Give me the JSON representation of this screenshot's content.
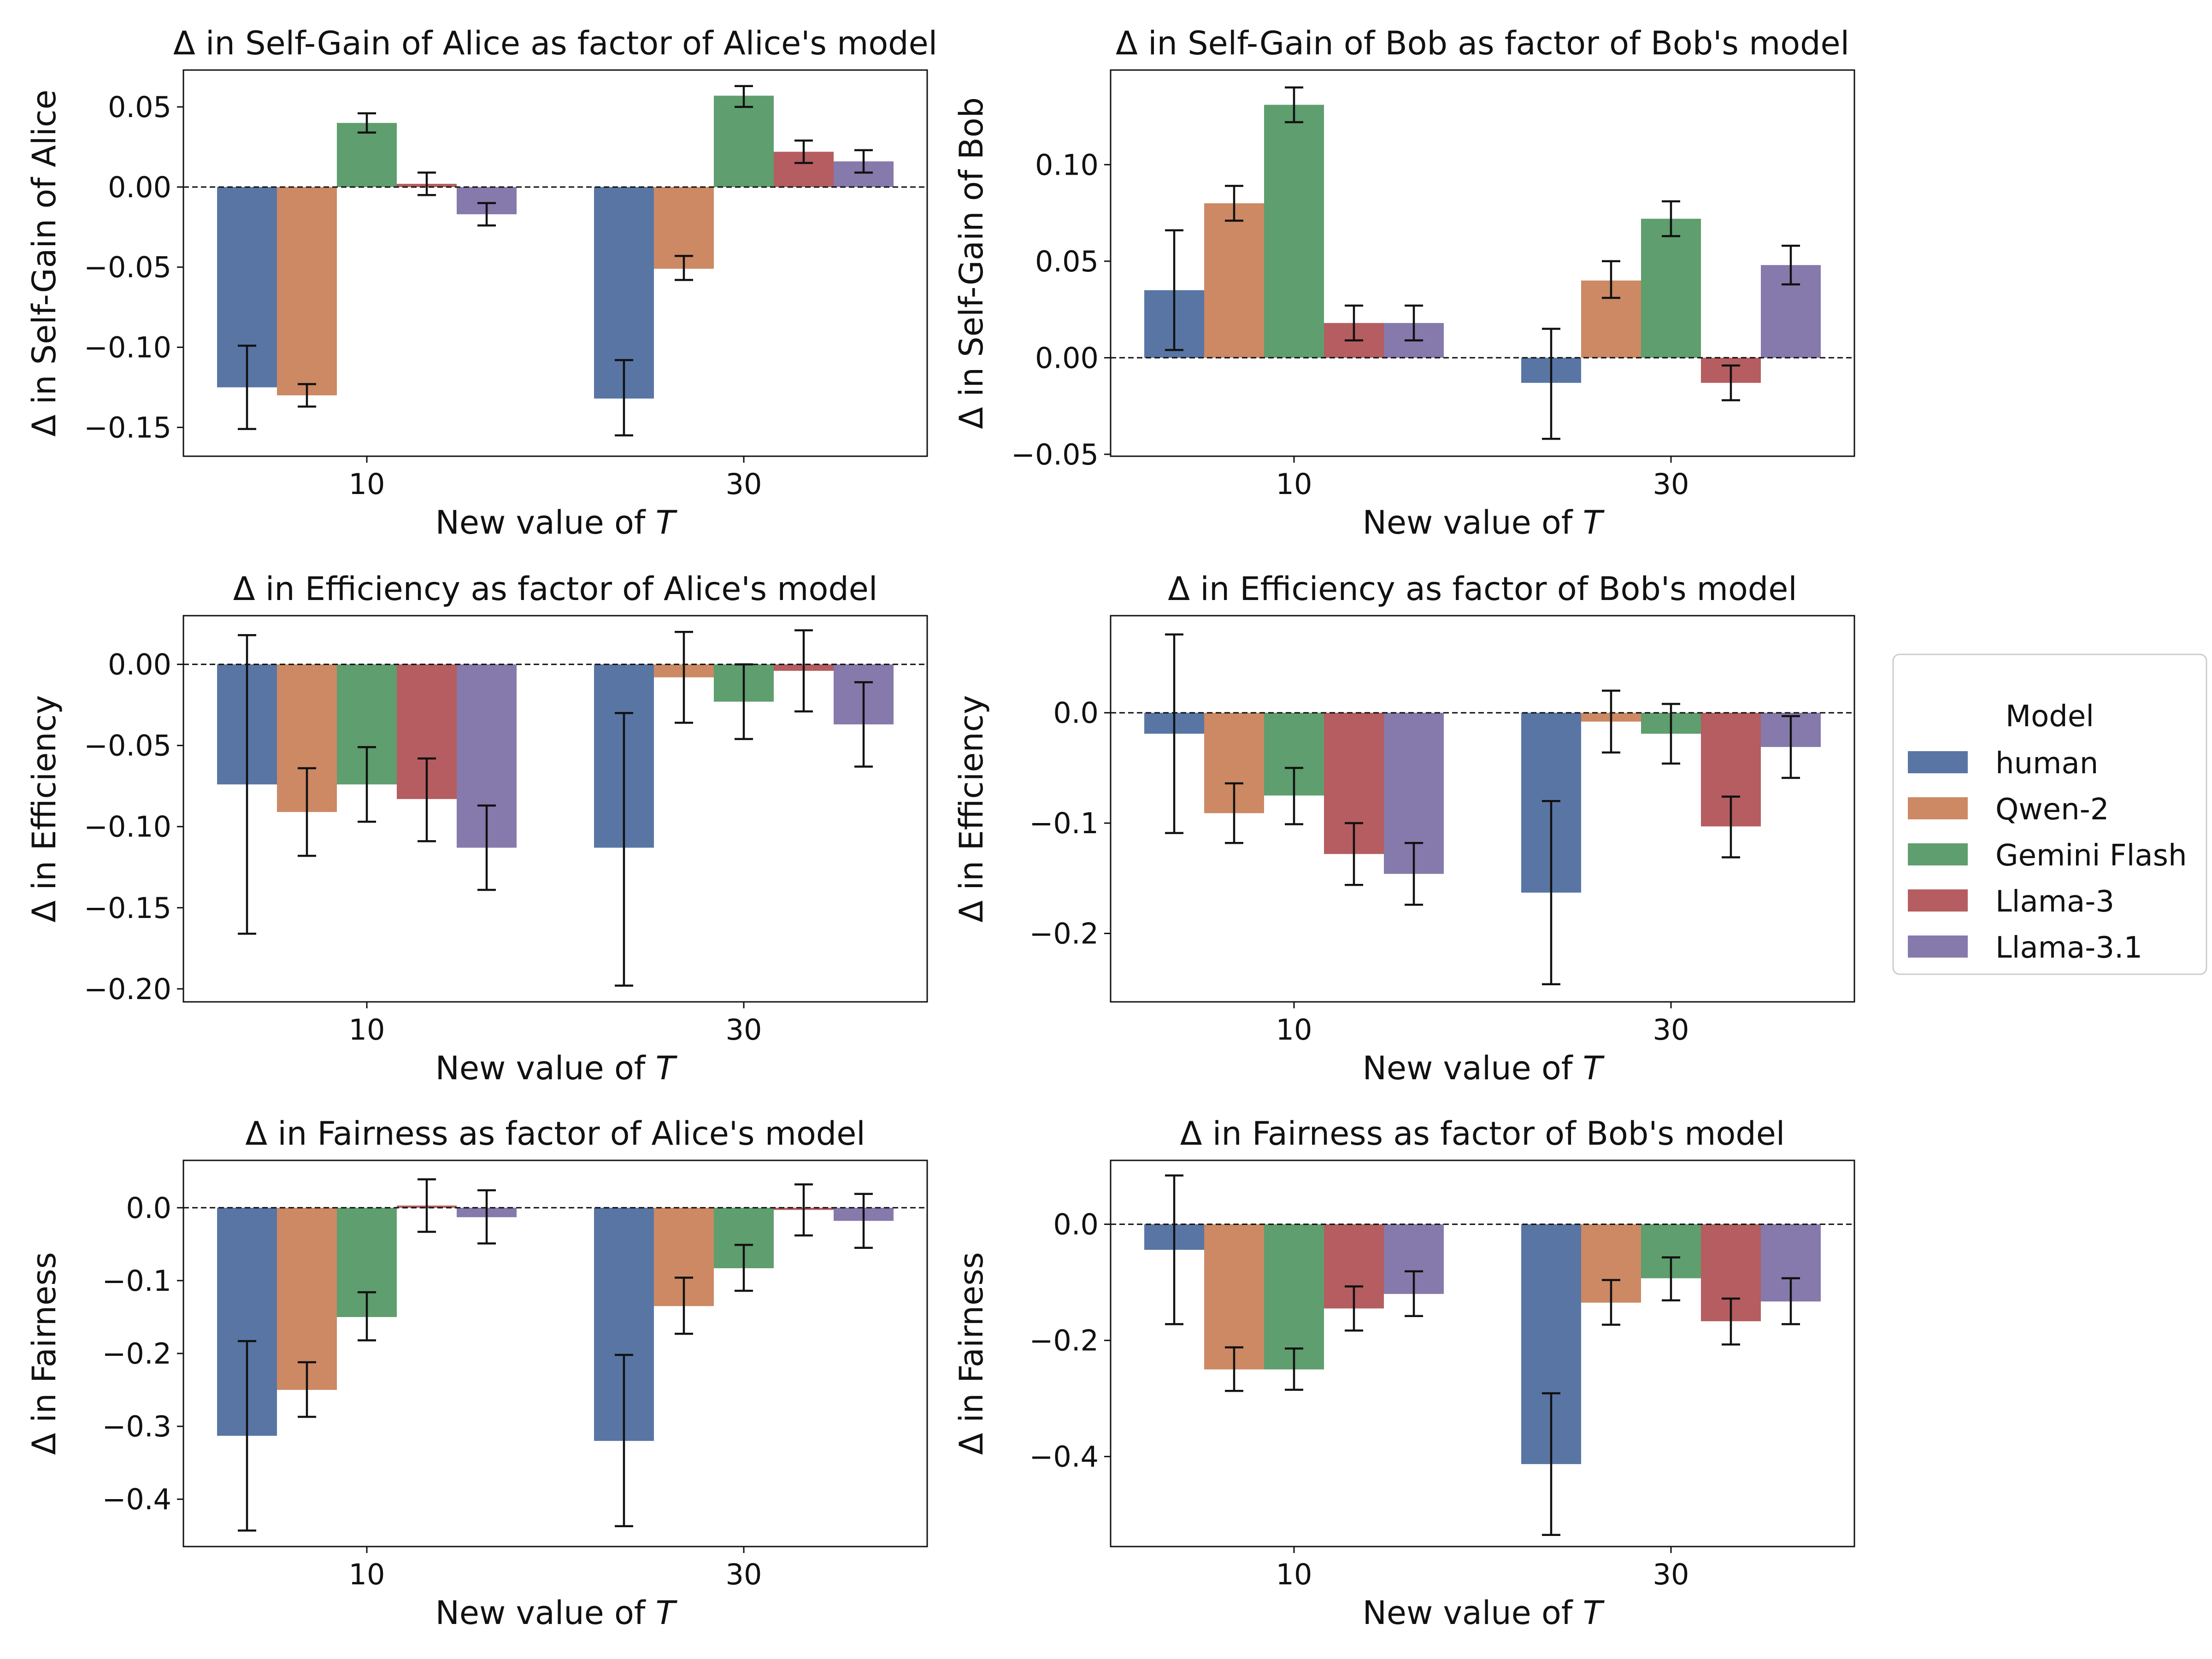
{
  "legend": {
    "title": "Model",
    "placement": "right",
    "items": [
      {
        "label": "human",
        "color": "#5875a4"
      },
      {
        "label": "Qwen-2",
        "color": "#cc8963"
      },
      {
        "label": "Gemini Flash",
        "color": "#5f9e6e"
      },
      {
        "label": "Llama-3",
        "color": "#b55d60"
      },
      {
        "label": "Llama-3.1",
        "color": "#857aab"
      }
    ]
  },
  "chart_data": [
    {
      "type": "bar",
      "title": "Δ in Self-Gain of Alice as factor of Alice's model",
      "xlabel_prefix": "New value of ",
      "xlabel_var": "T",
      "ylabel": "Δ in Self-Gain of Alice",
      "categories": [
        "10",
        "30"
      ],
      "ylim": [
        -0.168,
        0.073
      ],
      "yticks": [
        0.05,
        0.0,
        -0.05,
        -0.1,
        -0.15
      ],
      "yticklabels": [
        "0.05",
        "0.00",
        "−0.05",
        "−0.10",
        "−0.15"
      ],
      "series": [
        {
          "name": "human",
          "values": [
            -0.125,
            -0.132
          ],
          "err_low": [
            -0.151,
            -0.155
          ],
          "err_high": [
            -0.099,
            -0.108
          ]
        },
        {
          "name": "Qwen-2",
          "values": [
            -0.13,
            -0.051
          ],
          "err_low": [
            -0.137,
            -0.058
          ],
          "err_high": [
            -0.123,
            -0.043
          ]
        },
        {
          "name": "Gemini Flash",
          "values": [
            0.04,
            0.057
          ],
          "err_low": [
            0.034,
            0.05
          ],
          "err_high": [
            0.046,
            0.063
          ]
        },
        {
          "name": "Llama-3",
          "values": [
            0.002,
            0.022
          ],
          "err_low": [
            -0.005,
            0.015
          ],
          "err_high": [
            0.009,
            0.029
          ]
        },
        {
          "name": "Llama-3.1",
          "values": [
            -0.017,
            0.016
          ],
          "err_low": [
            -0.024,
            0.009
          ],
          "err_high": [
            -0.01,
            0.023
          ]
        }
      ]
    },
    {
      "type": "bar",
      "title": "Δ in Self-Gain of Bob as factor of Bob's model",
      "xlabel_prefix": "New value of ",
      "xlabel_var": "T",
      "ylabel": "Δ in Self-Gain of Bob",
      "categories": [
        "10",
        "30"
      ],
      "ylim": [
        -0.051,
        0.149
      ],
      "yticks": [
        0.1,
        0.05,
        0.0,
        -0.05
      ],
      "yticklabels": [
        "0.10",
        "0.05",
        "0.00",
        "−0.05"
      ],
      "series": [
        {
          "name": "human",
          "values": [
            0.035,
            -0.013
          ],
          "err_low": [
            0.004,
            -0.042
          ],
          "err_high": [
            0.066,
            0.015
          ]
        },
        {
          "name": "Qwen-2",
          "values": [
            0.08,
            0.04
          ],
          "err_low": [
            0.071,
            0.031
          ],
          "err_high": [
            0.089,
            0.05
          ]
        },
        {
          "name": "Gemini Flash",
          "values": [
            0.131,
            0.072
          ],
          "err_low": [
            0.122,
            0.063
          ],
          "err_high": [
            0.14,
            0.081
          ]
        },
        {
          "name": "Llama-3",
          "values": [
            0.018,
            -0.013
          ],
          "err_low": [
            0.009,
            -0.022
          ],
          "err_high": [
            0.027,
            -0.004
          ]
        },
        {
          "name": "Llama-3.1",
          "values": [
            0.018,
            0.048
          ],
          "err_low": [
            0.009,
            0.038
          ],
          "err_high": [
            0.027,
            0.058
          ]
        }
      ]
    },
    {
      "type": "bar",
      "title": "Δ in Efficiency as factor of Alice's model",
      "xlabel_prefix": "New value of ",
      "xlabel_var": "T",
      "ylabel": "Δ in Efficiency",
      "categories": [
        "10",
        "30"
      ],
      "ylim": [
        -0.208,
        0.03
      ],
      "yticks": [
        0.0,
        -0.05,
        -0.1,
        -0.15,
        -0.2
      ],
      "yticklabels": [
        "0.00",
        "−0.05",
        "−0.10",
        "−0.15",
        "−0.20"
      ],
      "series": [
        {
          "name": "human",
          "values": [
            -0.074,
            -0.113
          ],
          "err_low": [
            -0.166,
            -0.198
          ],
          "err_high": [
            0.018,
            -0.03
          ]
        },
        {
          "name": "Qwen-2",
          "values": [
            -0.091,
            -0.008
          ],
          "err_low": [
            -0.118,
            -0.036
          ],
          "err_high": [
            -0.064,
            0.02
          ]
        },
        {
          "name": "Gemini Flash",
          "values": [
            -0.074,
            -0.023
          ],
          "err_low": [
            -0.097,
            -0.046
          ],
          "err_high": [
            -0.051,
            0.0
          ]
        },
        {
          "name": "Llama-3",
          "values": [
            -0.083,
            -0.004
          ],
          "err_low": [
            -0.109,
            -0.029
          ],
          "err_high": [
            -0.058,
            0.021
          ]
        },
        {
          "name": "Llama-3.1",
          "values": [
            -0.113,
            -0.037
          ],
          "err_low": [
            -0.139,
            -0.063
          ],
          "err_high": [
            -0.087,
            -0.011
          ]
        }
      ]
    },
    {
      "type": "bar",
      "title": "Δ in Efficiency as factor of Bob's model",
      "xlabel_prefix": "New value of ",
      "xlabel_var": "T",
      "ylabel": "Δ in Efficiency",
      "categories": [
        "10",
        "30"
      ],
      "ylim": [
        -0.262,
        0.088
      ],
      "yticks": [
        0.0,
        -0.1,
        -0.2
      ],
      "yticklabels": [
        "0.0",
        "−0.1",
        "−0.2"
      ],
      "series": [
        {
          "name": "human",
          "values": [
            -0.019,
            -0.163
          ],
          "err_low": [
            -0.109,
            -0.246
          ],
          "err_high": [
            0.071,
            -0.08
          ]
        },
        {
          "name": "Qwen-2",
          "values": [
            -0.091,
            -0.008
          ],
          "err_low": [
            -0.118,
            -0.036
          ],
          "err_high": [
            -0.064,
            0.02
          ]
        },
        {
          "name": "Gemini Flash",
          "values": [
            -0.075,
            -0.019
          ],
          "err_low": [
            -0.101,
            -0.046
          ],
          "err_high": [
            -0.05,
            0.008
          ]
        },
        {
          "name": "Llama-3",
          "values": [
            -0.128,
            -0.103
          ],
          "err_low": [
            -0.156,
            -0.131
          ],
          "err_high": [
            -0.1,
            -0.076
          ]
        },
        {
          "name": "Llama-3.1",
          "values": [
            -0.146,
            -0.031
          ],
          "err_low": [
            -0.174,
            -0.059
          ],
          "err_high": [
            -0.118,
            -0.003
          ]
        }
      ]
    },
    {
      "type": "bar",
      "title": "Δ in Fairness as factor of Alice's model",
      "xlabel_prefix": "New value of ",
      "xlabel_var": "T",
      "ylabel": "Δ in Fairness",
      "categories": [
        "10",
        "30"
      ],
      "ylim": [
        -0.465,
        0.065
      ],
      "yticks": [
        0.0,
        -0.1,
        -0.2,
        -0.3,
        -0.4
      ],
      "yticklabels": [
        "0.0",
        "−0.1",
        "−0.2",
        "−0.3",
        "−0.4"
      ],
      "series": [
        {
          "name": "human",
          "values": [
            -0.313,
            -0.32
          ],
          "err_low": [
            -0.443,
            -0.437
          ],
          "err_high": [
            -0.183,
            -0.202
          ]
        },
        {
          "name": "Qwen-2",
          "values": [
            -0.25,
            -0.135
          ],
          "err_low": [
            -0.287,
            -0.173
          ],
          "err_high": [
            -0.212,
            -0.096
          ]
        },
        {
          "name": "Gemini Flash",
          "values": [
            -0.15,
            -0.083
          ],
          "err_low": [
            -0.182,
            -0.114
          ],
          "err_high": [
            -0.116,
            -0.051
          ]
        },
        {
          "name": "Llama-3",
          "values": [
            0.003,
            -0.003
          ],
          "err_low": [
            -0.033,
            -0.038
          ],
          "err_high": [
            0.039,
            0.032
          ]
        },
        {
          "name": "Llama-3.1",
          "values": [
            -0.013,
            -0.018
          ],
          "err_low": [
            -0.049,
            -0.055
          ],
          "err_high": [
            0.024,
            0.019
          ]
        }
      ]
    },
    {
      "type": "bar",
      "title": "Δ in Fairness as factor of Bob's model",
      "xlabel_prefix": "New value of ",
      "xlabel_var": "T",
      "ylabel": "Δ in Fairness",
      "categories": [
        "10",
        "30"
      ],
      "ylim": [
        -0.555,
        0.11
      ],
      "yticks": [
        0.0,
        -0.2,
        -0.4
      ],
      "yticklabels": [
        "0.0",
        "−0.2",
        "−0.4"
      ],
      "series": [
        {
          "name": "human",
          "values": [
            -0.044,
            -0.413
          ],
          "err_low": [
            -0.172,
            -0.535
          ],
          "err_high": [
            0.084,
            -0.291
          ]
        },
        {
          "name": "Qwen-2",
          "values": [
            -0.25,
            -0.135
          ],
          "err_low": [
            -0.287,
            -0.173
          ],
          "err_high": [
            -0.212,
            -0.096
          ]
        },
        {
          "name": "Gemini Flash",
          "values": [
            -0.25,
            -0.093
          ],
          "err_low": [
            -0.285,
            -0.131
          ],
          "err_high": [
            -0.214,
            -0.057
          ]
        },
        {
          "name": "Llama-3",
          "values": [
            -0.145,
            -0.167
          ],
          "err_low": [
            -0.183,
            -0.207
          ],
          "err_high": [
            -0.107,
            -0.128
          ]
        },
        {
          "name": "Llama-3.1",
          "values": [
            -0.12,
            -0.133
          ],
          "err_low": [
            -0.158,
            -0.172
          ],
          "err_high": [
            -0.081,
            -0.093
          ]
        }
      ]
    }
  ]
}
